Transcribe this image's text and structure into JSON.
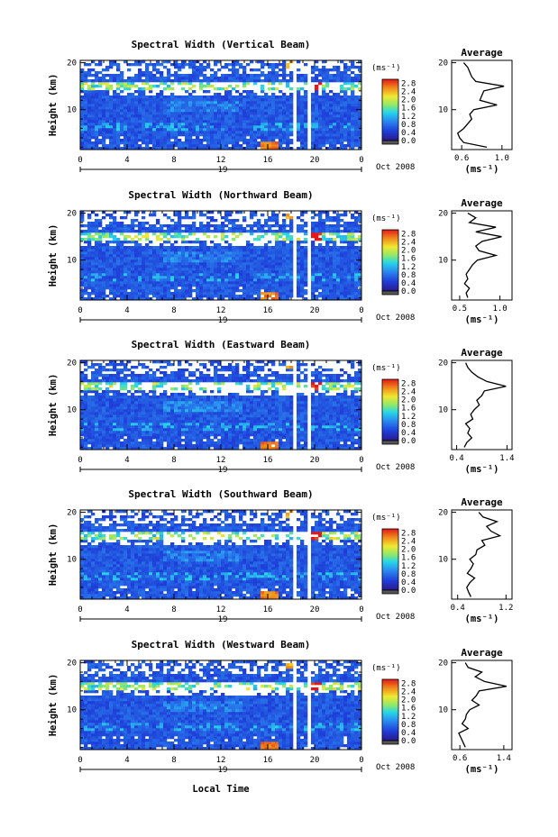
{
  "chart_data": [
    {
      "type": "heatmap",
      "title": "Spectral Width (Vertical Beam)",
      "ylabel": "Height (km)",
      "xlabel": "Local Time",
      "x_ticks": [
        "0",
        "4",
        "8",
        "12",
        "16",
        "20",
        "0"
      ],
      "y_ticks": [
        "20",
        "10"
      ],
      "xlim": [
        0,
        24
      ],
      "ylim": [
        1.5,
        20.5
      ],
      "date_day": "19",
      "date_label": "Oct 2008",
      "colorbar": {
        "unit": "(ms⁻¹)",
        "ticks": [
          "2.8",
          "2.4",
          "2.0",
          "1.6",
          "1.2",
          "0.8",
          "0.4",
          "0.0"
        ],
        "range": [
          0.0,
          3.0
        ]
      },
      "gaps_hours": [
        18.9,
        19.4
      ],
      "profile": {
        "title": "Average",
        "xlabel": "(ms⁻¹)",
        "x_ticks": [
          "0.6",
          "1.0"
        ],
        "xlim": [
          0.5,
          1.1
        ],
        "y_ticks": [
          "20",
          "10"
        ],
        "height_km": [
          2,
          3,
          4,
          5,
          6,
          7,
          8,
          9,
          10,
          11,
          12,
          13,
          14,
          15,
          16,
          17,
          18,
          19,
          20
        ],
        "values": [
          0.85,
          0.62,
          0.58,
          0.56,
          0.62,
          0.66,
          0.7,
          0.68,
          0.72,
          0.95,
          0.78,
          0.8,
          0.82,
          1.02,
          0.74,
          0.7,
          0.68,
          0.66,
          0.62
        ]
      }
    },
    {
      "type": "heatmap",
      "title": "Spectral Width (Northward Beam)",
      "ylabel": "Height (km)",
      "xlabel": "Local Time",
      "x_ticks": [
        "0",
        "4",
        "8",
        "12",
        "16",
        "20",
        "0"
      ],
      "y_ticks": [
        "20",
        "10"
      ],
      "xlim": [
        0,
        24
      ],
      "ylim": [
        1.5,
        20.5
      ],
      "date_day": "19",
      "date_label": "Oct 2008",
      "colorbar": {
        "unit": "(ms⁻¹)",
        "ticks": [
          "2.8",
          "2.4",
          "2.0",
          "1.6",
          "1.2",
          "0.8",
          "0.4",
          "0.0"
        ],
        "range": [
          0.0,
          3.0
        ]
      },
      "gaps_hours": [
        18.9,
        19.4
      ],
      "profile": {
        "title": "Average",
        "xlabel": "(ms⁻¹)",
        "x_ticks": [
          "0.5",
          "1.0"
        ],
        "xlim": [
          0.4,
          1.15
        ],
        "y_ticks": [
          "20",
          "10"
        ],
        "height_km": [
          2,
          3,
          4,
          5,
          6,
          7,
          8,
          9,
          10,
          11,
          12,
          13,
          14,
          15,
          16,
          17,
          18,
          19,
          20
        ],
        "values": [
          0.6,
          0.58,
          0.62,
          0.56,
          0.6,
          0.58,
          0.62,
          0.66,
          0.72,
          0.95,
          0.74,
          0.7,
          0.78,
          1.02,
          0.7,
          0.95,
          0.62,
          0.7,
          0.6
        ]
      }
    },
    {
      "type": "heatmap",
      "title": "Spectral Width (Eastward Beam)",
      "ylabel": "Height (km)",
      "xlabel": "Local Time",
      "x_ticks": [
        "0",
        "4",
        "8",
        "12",
        "16",
        "20",
        "0"
      ],
      "y_ticks": [
        "20",
        "10"
      ],
      "xlim": [
        0,
        24
      ],
      "ylim": [
        1.5,
        20.5
      ],
      "date_day": "19",
      "date_label": "Oct 2008",
      "colorbar": {
        "unit": "(ms⁻¹)",
        "ticks": [
          "2.8",
          "2.4",
          "2.0",
          "1.6",
          "1.2",
          "0.8",
          "0.4",
          "0.0"
        ],
        "range": [
          0.0,
          3.0
        ]
      },
      "gaps_hours": [
        18.9,
        19.4
      ],
      "profile": {
        "title": "Average",
        "xlabel": "(ms⁻¹)",
        "x_ticks": [
          "0.4",
          "1.4"
        ],
        "xlim": [
          0.3,
          1.5
        ],
        "y_ticks": [
          "20",
          "10"
        ],
        "height_km": [
          2,
          3,
          4,
          5,
          6,
          7,
          8,
          9,
          10,
          11,
          12,
          13,
          14,
          15,
          16,
          17,
          18,
          19,
          20
        ],
        "values": [
          0.55,
          0.6,
          0.7,
          0.62,
          0.66,
          0.58,
          0.72,
          0.68,
          0.75,
          0.85,
          0.8,
          0.9,
          0.95,
          1.38,
          1.0,
          0.82,
          0.7,
          0.62,
          0.58
        ]
      }
    },
    {
      "type": "heatmap",
      "title": "Spectral Width (Southward Beam)",
      "ylabel": "Height (km)",
      "xlabel": "Local Time",
      "x_ticks": [
        "0",
        "4",
        "8",
        "12",
        "16",
        "20",
        "0"
      ],
      "y_ticks": [
        "20",
        "10"
      ],
      "xlim": [
        0,
        24
      ],
      "ylim": [
        1.5,
        20.5
      ],
      "date_day": "19",
      "date_label": "Oct 2008",
      "colorbar": {
        "unit": "(ms⁻¹)",
        "ticks": [
          "2.8",
          "2.4",
          "2.0",
          "1.6",
          "1.2",
          "0.8",
          "0.4",
          "0.0"
        ],
        "range": [
          0.0,
          3.0
        ]
      },
      "gaps_hours": [
        18.9,
        19.4
      ],
      "profile": {
        "title": "Average",
        "xlabel": "(ms⁻¹)",
        "x_ticks": [
          "0.4",
          "1.2"
        ],
        "xlim": [
          0.3,
          1.3
        ],
        "y_ticks": [
          "20",
          "10"
        ],
        "height_km": [
          2,
          3,
          4,
          5,
          6,
          7,
          8,
          9,
          10,
          11,
          12,
          13,
          14,
          15,
          16,
          17,
          18,
          19,
          20
        ],
        "values": [
          0.62,
          0.58,
          0.55,
          0.6,
          0.68,
          0.56,
          0.62,
          0.66,
          0.6,
          0.7,
          0.72,
          0.85,
          0.8,
          1.1,
          0.95,
          0.88,
          1.05,
          0.82,
          0.75
        ]
      }
    },
    {
      "type": "heatmap",
      "title": "Spectral Width (Westward Beam)",
      "ylabel": "Height (km)",
      "xlabel": "Local Time",
      "x_ticks": [
        "0",
        "4",
        "8",
        "12",
        "16",
        "20",
        "0"
      ],
      "y_ticks": [
        "20",
        "10"
      ],
      "xlim": [
        0,
        24
      ],
      "ylim": [
        1.5,
        20.5
      ],
      "date_day": "19",
      "date_label": "Oct 2008",
      "colorbar": {
        "unit": "(ms⁻¹)",
        "ticks": [
          "2.8",
          "2.4",
          "2.0",
          "1.6",
          "1.2",
          "0.8",
          "0.4",
          "0.0"
        ],
        "range": [
          0.0,
          3.0
        ]
      },
      "gaps_hours": [
        18.9,
        19.4
      ],
      "profile": {
        "title": "Average",
        "xlabel": "(ms⁻¹)",
        "x_ticks": [
          "0.6",
          "1.4"
        ],
        "xlim": [
          0.45,
          1.55
        ],
        "y_ticks": [
          "20",
          "10"
        ],
        "height_km": [
          2,
          3,
          4,
          5,
          6,
          7,
          8,
          9,
          10,
          11,
          12,
          13,
          14,
          15,
          16,
          17,
          18,
          19,
          20
        ],
        "values": [
          0.7,
          0.66,
          0.62,
          0.58,
          0.75,
          0.64,
          0.7,
          0.72,
          0.78,
          0.95,
          0.82,
          0.9,
          0.95,
          1.45,
          1.05,
          0.88,
          1.0,
          0.75,
          0.7
        ]
      }
    }
  ],
  "footer": {
    "xlabel": "Local Time"
  }
}
